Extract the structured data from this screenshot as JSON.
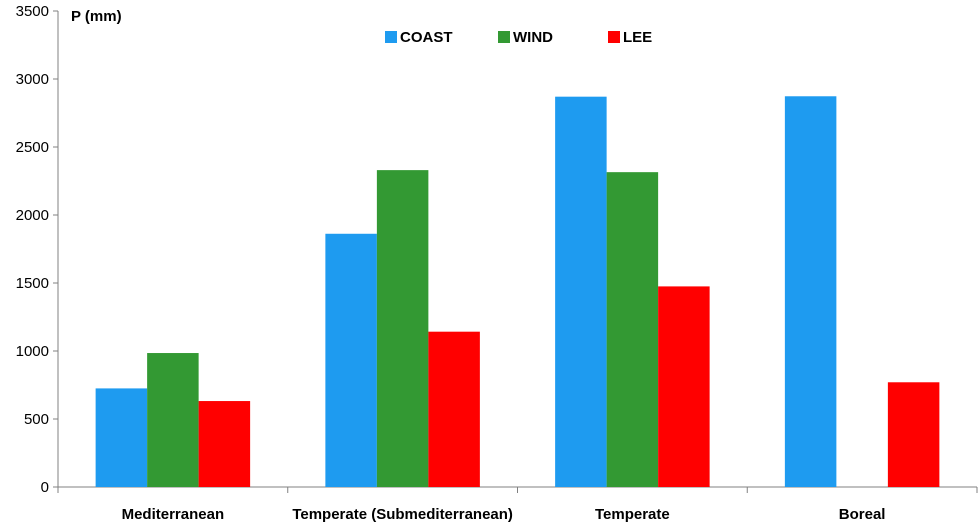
{
  "chart_data": {
    "type": "bar",
    "title": "",
    "xlabel": "",
    "ylabel": "P (mm)",
    "ylim": [
      0,
      3500
    ],
    "yticks": [
      0,
      500,
      1000,
      1500,
      2000,
      2500,
      3000,
      3500
    ],
    "categories": [
      "Mediterranean",
      "Temperate (Submediterranean)",
      "Temperate",
      "Boreal"
    ],
    "series": [
      {
        "name": "COAST",
        "color": "#1E9BF0",
        "values": [
          725,
          1862,
          2870,
          2873
        ]
      },
      {
        "name": "WIND",
        "color": "#339933",
        "values": [
          985,
          2330,
          2315,
          null
        ]
      },
      {
        "name": "LEE",
        "color": "#FF0000",
        "values": [
          632,
          1142,
          1475,
          770
        ]
      }
    ],
    "legend": "top-center",
    "grid": false
  }
}
